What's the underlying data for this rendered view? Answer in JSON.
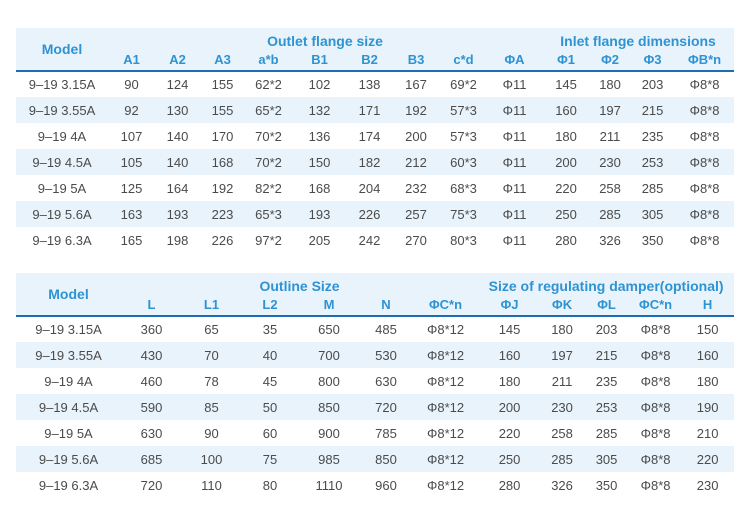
{
  "colors": {
    "stripe": "#e8f3fb",
    "header": "#2e93d3",
    "divider": "#1b6cb3",
    "text": "#4b4b4b",
    "bg": "#ffffff"
  },
  "table1": {
    "model_label": "Model",
    "groups": [
      {
        "label": "Outlet flange size"
      },
      {
        "label": "Inlet flange dimensions"
      }
    ],
    "columns": [
      "A1",
      "A2",
      "A3",
      "a*b",
      "B1",
      "B2",
      "B3",
      "c*d",
      "ΦA",
      "Φ1",
      "Φ2",
      "Φ3",
      "ΦB*n"
    ],
    "rows": [
      [
        "9–19 3.15A",
        "90",
        "124",
        "155",
        "62*2",
        "102",
        "138",
        "167",
        "69*2",
        "Φ11",
        "145",
        "180",
        "203",
        "Φ8*8"
      ],
      [
        "9–19 3.55A",
        "92",
        "130",
        "155",
        "65*2",
        "132",
        "171",
        "192",
        "57*3",
        "Φ11",
        "160",
        "197",
        "215",
        "Φ8*8"
      ],
      [
        "9–19 4A",
        "107",
        "140",
        "170",
        "70*2",
        "136",
        "174",
        "200",
        "57*3",
        "Φ11",
        "180",
        "211",
        "235",
        "Φ8*8"
      ],
      [
        "9–19 4.5A",
        "105",
        "140",
        "168",
        "70*2",
        "150",
        "182",
        "212",
        "60*3",
        "Φ11",
        "200",
        "230",
        "253",
        "Φ8*8"
      ],
      [
        "9–19 5A",
        "125",
        "164",
        "192",
        "82*2",
        "168",
        "204",
        "232",
        "68*3",
        "Φ11",
        "220",
        "258",
        "285",
        "Φ8*8"
      ],
      [
        "9–19 5.6A",
        "163",
        "193",
        "223",
        "65*3",
        "193",
        "226",
        "257",
        "75*3",
        "Φ11",
        "250",
        "285",
        "305",
        "Φ8*8"
      ],
      [
        "9–19 6.3A",
        "165",
        "198",
        "226",
        "97*2",
        "205",
        "242",
        "270",
        "80*3",
        "Φ11",
        "280",
        "326",
        "350",
        "Φ8*8"
      ]
    ]
  },
  "table2": {
    "model_label": "Model",
    "groups": [
      {
        "label": "Outline Size"
      },
      {
        "label": "Size of regulating damper(optional)"
      }
    ],
    "columns": [
      "L",
      "L1",
      "L2",
      "M",
      "N",
      "ΦC*n",
      "ΦJ",
      "ΦK",
      "ΦL",
      "ΦC*n",
      "H"
    ],
    "rows": [
      [
        "9–19 3.15A",
        "360",
        "65",
        "35",
        "650",
        "485",
        "Φ8*12",
        "145",
        "180",
        "203",
        "Φ8*8",
        "150"
      ],
      [
        "9–19 3.55A",
        "430",
        "70",
        "40",
        "700",
        "530",
        "Φ8*12",
        "160",
        "197",
        "215",
        "Φ8*8",
        "160"
      ],
      [
        "9–19 4A",
        "460",
        "78",
        "45",
        "800",
        "630",
        "Φ8*12",
        "180",
        "211",
        "235",
        "Φ8*8",
        "180"
      ],
      [
        "9–19 4.5A",
        "590",
        "85",
        "50",
        "850",
        "720",
        "Φ8*12",
        "200",
        "230",
        "253",
        "Φ8*8",
        "190"
      ],
      [
        "9–19 5A",
        "630",
        "90",
        "60",
        "900",
        "785",
        "Φ8*12",
        "220",
        "258",
        "285",
        "Φ8*8",
        "210"
      ],
      [
        "9–19 5.6A",
        "685",
        "100",
        "75",
        "985",
        "850",
        "Φ8*12",
        "250",
        "285",
        "305",
        "Φ8*8",
        "220"
      ],
      [
        "9–19 6.3A",
        "720",
        "110",
        "80",
        "1110",
        "960",
        "Φ8*12",
        "280",
        "326",
        "350",
        "Φ8*8",
        "230"
      ]
    ]
  }
}
